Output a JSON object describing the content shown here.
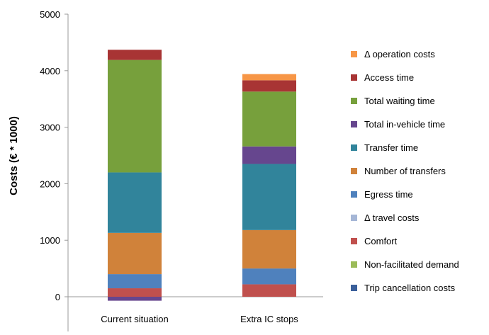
{
  "chart_data": {
    "type": "bar",
    "stacked": true,
    "title": "",
    "xlabel": "",
    "ylabel": "Costs (€ * 1000)",
    "ylim": [
      -100,
      5000
    ],
    "yticks": [
      0,
      1000,
      2000,
      3000,
      4000,
      5000
    ],
    "grid": false,
    "legend_position": "right",
    "categories": [
      "Current situation",
      "Extra IC stops"
    ],
    "series": [
      {
        "name": "Trip cancellation costs",
        "color": "#3a5f9a",
        "values": [
          0,
          0
        ]
      },
      {
        "name": "Non-facilitated demand",
        "color": "#9bbb59",
        "values": [
          0,
          0
        ]
      },
      {
        "name": "Comfort",
        "color": "#c0504d",
        "values": [
          150,
          220
        ]
      },
      {
        "name": "Δ travel costs",
        "color": "#a5b6d6",
        "values": [
          0,
          0
        ]
      },
      {
        "name": "Egress time",
        "color": "#4f81bd",
        "values": [
          250,
          280
        ]
      },
      {
        "name": "Number of transfers",
        "color": "#d0823a",
        "values": [
          730,
          680
        ]
      },
      {
        "name": "Transfer time",
        "color": "#31849b",
        "values": [
          1070,
          1170
        ]
      },
      {
        "name": "Total in-vehicle time",
        "color": "#66468e",
        "values": [
          -70,
          310
        ]
      },
      {
        "name": "Total waiting time",
        "color": "#77a03c",
        "values": [
          1990,
          970
        ]
      },
      {
        "name": "Access time",
        "color": "#a83434",
        "values": [
          180,
          200
        ]
      },
      {
        "name": "Δ operation costs",
        "color": "#f79646",
        "values": [
          0,
          110
        ]
      }
    ],
    "legend_order": [
      "Δ operation costs",
      "Access time",
      "Total waiting time",
      "Total in-vehicle time",
      "Transfer time",
      "Number of transfers",
      "Egress time",
      "Δ travel costs",
      "Comfort",
      "Non-facilitated demand",
      "Trip cancellation costs"
    ]
  }
}
